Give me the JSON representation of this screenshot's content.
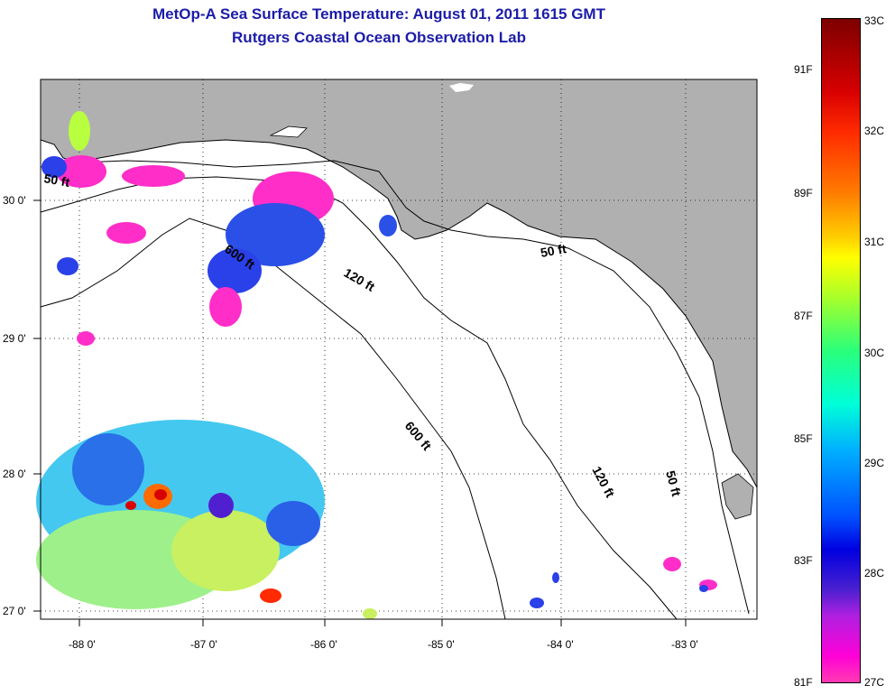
{
  "title": {
    "line1": "MetOp-A Sea Surface Temperature:  August 01, 2011 1615 GMT",
    "line2": "Rutgers Coastal Ocean Observation Lab"
  },
  "map": {
    "lon_labels": [
      "-88 0'",
      "-87 0'",
      "-86 0'",
      "-85 0'",
      "-84 0'",
      "-83 0'"
    ],
    "lat_labels": [
      "30 0'",
      "29 0'",
      "28 0'",
      "27 0'"
    ],
    "isobath_labels": [
      "50 ft",
      "600 ft",
      "120 ft",
      "50 ft",
      "600 ft",
      "120 ft",
      "50 ft"
    ],
    "land_color": "#b0b0b0",
    "water_color": "#ffffff"
  },
  "colorbar": {
    "celsius": [
      "33C",
      "32C",
      "31C",
      "30C",
      "29C",
      "28C",
      "27C"
    ],
    "fahrenheit": [
      "91F",
      "89F",
      "87F",
      "85F",
      "83F",
      "81F"
    ],
    "high_color": "#7d0000",
    "low_color": "#ff3ab0"
  }
}
